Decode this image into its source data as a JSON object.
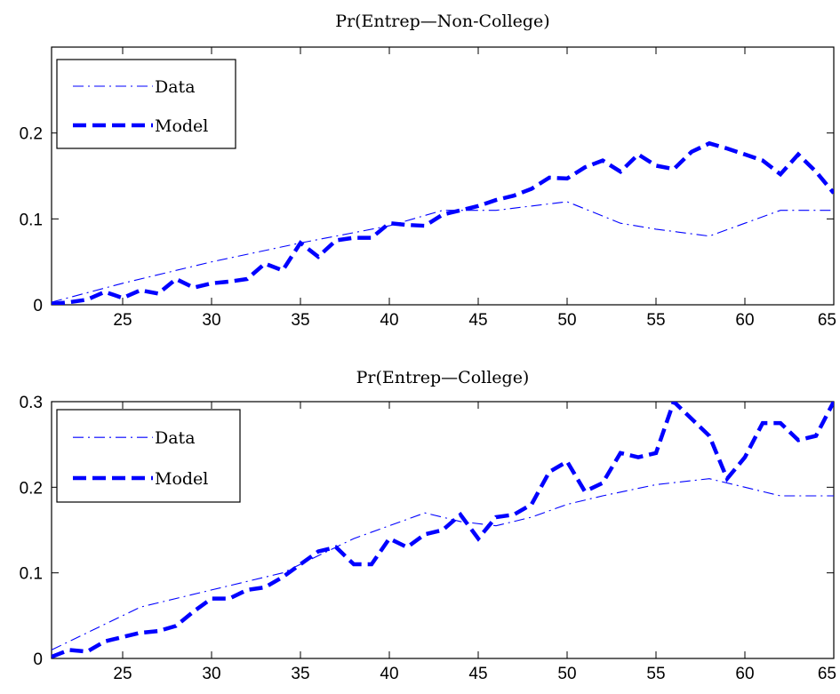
{
  "colors": {
    "series": "#0000ff",
    "axes": "#000000",
    "background": "#ffffff"
  },
  "chart_data": [
    {
      "type": "line",
      "title": "Pr(Entrep—Non-College)",
      "xlabel": "",
      "ylabel": "",
      "xlim": [
        21,
        65
      ],
      "ylim": [
        0,
        0.3
      ],
      "xticks": [
        25,
        30,
        35,
        40,
        45,
        50,
        55,
        60,
        65
      ],
      "yticks": [
        0,
        0.1,
        0.2
      ],
      "ytick_labels": [
        "0",
        "0.1",
        "0.2"
      ],
      "grid": false,
      "legend_position": "top-left",
      "series": [
        {
          "name": "Data",
          "style": "dash-dot",
          "x": [
            21,
            25,
            30,
            35,
            40,
            43,
            46,
            50,
            53,
            55,
            58,
            60,
            62,
            65
          ],
          "y": [
            0.003,
            0.025,
            0.05,
            0.072,
            0.092,
            0.11,
            0.11,
            0.12,
            0.095,
            0.088,
            0.08,
            0.095,
            0.11,
            0.11
          ]
        },
        {
          "name": "Model",
          "style": "dashed",
          "x": [
            21,
            22,
            23,
            24,
            25,
            26,
            27,
            28,
            29,
            30,
            31,
            32,
            33,
            34,
            35,
            36,
            37,
            38,
            39,
            40,
            41,
            42,
            43,
            44,
            45,
            46,
            47,
            48,
            49,
            50,
            51,
            52,
            53,
            54,
            55,
            56,
            57,
            58,
            59,
            60,
            61,
            62,
            63,
            64,
            65
          ],
          "y": [
            0.001,
            0.003,
            0.006,
            0.015,
            0.008,
            0.017,
            0.013,
            0.03,
            0.02,
            0.025,
            0.027,
            0.03,
            0.048,
            0.04,
            0.072,
            0.056,
            0.075,
            0.078,
            0.078,
            0.095,
            0.093,
            0.092,
            0.105,
            0.11,
            0.115,
            0.122,
            0.127,
            0.135,
            0.148,
            0.147,
            0.16,
            0.168,
            0.155,
            0.175,
            0.162,
            0.158,
            0.178,
            0.188,
            0.182,
            0.175,
            0.168,
            0.152,
            0.175,
            0.155,
            0.13
          ]
        }
      ]
    },
    {
      "type": "line",
      "title": "Pr(Entrep—College)",
      "xlabel": "",
      "ylabel": "",
      "xlim": [
        21,
        65
      ],
      "ylim": [
        0,
        0.3
      ],
      "xticks": [
        25,
        30,
        35,
        40,
        45,
        50,
        55,
        60,
        65
      ],
      "yticks": [
        0,
        0.1,
        0.2,
        0.3
      ],
      "ytick_labels": [
        "0",
        "0.1",
        "0.2",
        "0.3"
      ],
      "grid": false,
      "legend_position": "top-left",
      "series": [
        {
          "name": "Data",
          "style": "dash-dot",
          "x": [
            21,
            23,
            26,
            30,
            34,
            38,
            42,
            44,
            46,
            48,
            50,
            52,
            55,
            58,
            60,
            62,
            65
          ],
          "y": [
            0.01,
            0.03,
            0.06,
            0.08,
            0.1,
            0.14,
            0.17,
            0.16,
            0.155,
            0.165,
            0.18,
            0.19,
            0.203,
            0.21,
            0.2,
            0.19,
            0.19
          ]
        },
        {
          "name": "Model",
          "style": "dashed",
          "x": [
            21,
            22,
            23,
            24,
            25,
            26,
            27,
            28,
            29,
            30,
            31,
            32,
            33,
            34,
            35,
            36,
            37,
            38,
            39,
            40,
            41,
            42,
            43,
            44,
            45,
            46,
            47,
            48,
            49,
            50,
            51,
            52,
            53,
            54,
            55,
            56,
            57,
            58,
            59,
            60,
            61,
            62,
            63,
            64,
            65
          ],
          "y": [
            0.002,
            0.01,
            0.008,
            0.02,
            0.025,
            0.03,
            0.032,
            0.038,
            0.055,
            0.07,
            0.07,
            0.08,
            0.083,
            0.095,
            0.11,
            0.125,
            0.13,
            0.11,
            0.11,
            0.14,
            0.13,
            0.145,
            0.15,
            0.168,
            0.14,
            0.165,
            0.168,
            0.18,
            0.218,
            0.23,
            0.195,
            0.205,
            0.24,
            0.235,
            0.24,
            0.3,
            0.28,
            0.26,
            0.21,
            0.235,
            0.275,
            0.275,
            0.255,
            0.26,
            0.3
          ]
        }
      ]
    }
  ]
}
